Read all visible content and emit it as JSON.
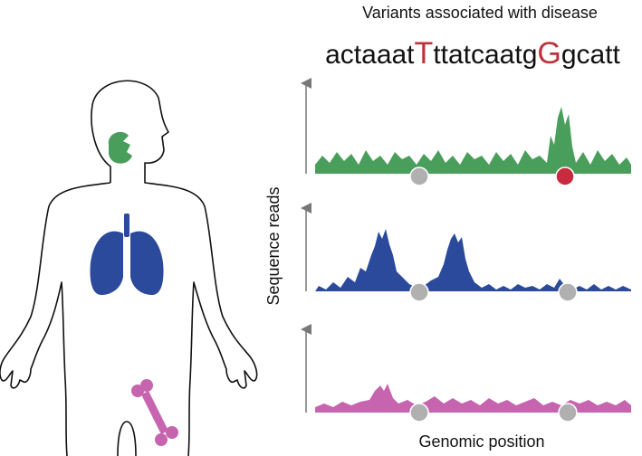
{
  "title": "Variants associated with disease",
  "sequence": {
    "segments": [
      "actaaat",
      "T",
      "ttatcaatg",
      "G",
      "gcatt"
    ]
  },
  "y_axis_label": "Sequence reads",
  "x_axis_label": "Genomic position"
}
